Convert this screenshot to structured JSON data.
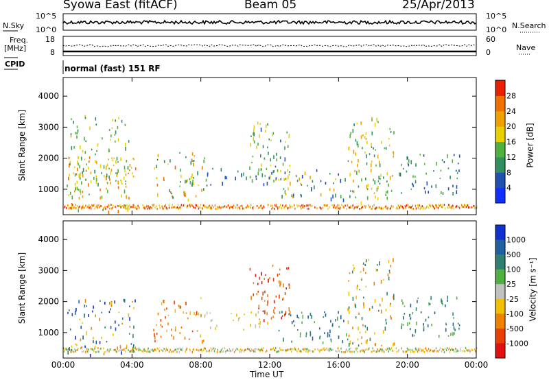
{
  "header": {
    "radar": "Syowa East (fitACF)",
    "beam": "Beam 05",
    "date": "25/Apr/2013"
  },
  "noise_panel": {
    "left_label": "N.Sky",
    "left_top_tick": "10^5",
    "left_bottom_tick": "10^0",
    "right_top_tick": "10^5",
    "right_bottom_tick": "10^0",
    "right_label": "N.Search"
  },
  "freq_panel": {
    "left_label_1": "Freq.",
    "left_label_2": "[MHz]",
    "left_top_tick": "18",
    "left_bottom_tick": "8",
    "right_top_tick": "60",
    "right_bottom_tick": "0",
    "right_label": "Nave"
  },
  "cpid": {
    "label": "CPID",
    "mode": "normal (fast) 151 RF"
  },
  "chart_data": [
    {
      "type": "heatmap",
      "name": "power",
      "ylabel": "Slant Range [km]",
      "xlabel": "",
      "yticks": [
        "1000",
        "2000",
        "3000",
        "4000"
      ],
      "ylim": [
        180,
        4600
      ],
      "colorbar_label": "Power [dB]",
      "colorbar_ticks": [
        "4",
        "8",
        "12",
        "16",
        "20",
        "24",
        "28"
      ],
      "colorbar_colors": [
        "#1030ff",
        "#2050b0",
        "#309060",
        "#50b040",
        "#e8d000",
        "#f0a000",
        "#f07000",
        "#e82000"
      ],
      "scatter_regions": [
        {
          "t0": 0.2,
          "t1": 4.2,
          "r0": 300,
          "r1": 2100,
          "c": [
            3,
            4,
            5,
            6
          ]
        },
        {
          "t0": 0.3,
          "t1": 3.8,
          "r0": 1200,
          "r1": 3400,
          "c": [
            2,
            3,
            4
          ]
        },
        {
          "t0": 5.2,
          "t1": 8.2,
          "r0": 700,
          "r1": 2200,
          "c": [
            2,
            3,
            4,
            5,
            6
          ]
        },
        {
          "t0": 8.0,
          "t1": 12.0,
          "r0": 1100,
          "r1": 1700,
          "c": [
            1,
            2,
            3
          ]
        },
        {
          "t0": 10.8,
          "t1": 13.2,
          "r0": 1300,
          "r1": 3200,
          "c": [
            1,
            2,
            3,
            4
          ]
        },
        {
          "t0": 12.5,
          "t1": 16.5,
          "r0": 700,
          "r1": 1700,
          "c": [
            1,
            2,
            3,
            4,
            5
          ]
        },
        {
          "t0": 16.5,
          "t1": 19.2,
          "r0": 600,
          "r1": 3400,
          "c": [
            2,
            3,
            4,
            5
          ]
        },
        {
          "t0": 19.5,
          "t1": 23.0,
          "r0": 900,
          "r1": 2200,
          "c": [
            1,
            2,
            3
          ]
        }
      ]
    },
    {
      "type": "heatmap",
      "name": "velocity",
      "ylabel": "Slant Range [km]",
      "xlabel": "Time UT",
      "xticks": [
        "00:00",
        "04:00",
        "08:00",
        "12:00",
        "16:00",
        "20:00",
        "00:00"
      ],
      "yticks": [
        "1000",
        "2000",
        "3000",
        "4000"
      ],
      "ylim": [
        180,
        4600
      ],
      "colorbar_label": "Velocity [m s⁻¹]",
      "colorbar_ticks": [
        "1000",
        "500",
        "100",
        "25",
        "-25",
        "-100",
        "-500",
        "-1000"
      ],
      "colorbar_colors": [
        "#1030d0",
        "#2060a0",
        "#308070",
        "#50b040",
        "#c0c0c0",
        "#f0c000",
        "#f08000",
        "#e84000",
        "#e01010"
      ],
      "scatter_regions": [
        {
          "t0": 0.2,
          "t1": 4.2,
          "r0": 300,
          "r1": 2100,
          "c": [
            0,
            1,
            2,
            5,
            6
          ]
        },
        {
          "t0": 5.2,
          "t1": 8.2,
          "r0": 700,
          "r1": 2200,
          "c": [
            6,
            7,
            5
          ]
        },
        {
          "t0": 8.0,
          "t1": 12.0,
          "r0": 1100,
          "r1": 1700,
          "c": [
            4,
            5
          ]
        },
        {
          "t0": 10.8,
          "t1": 13.2,
          "r0": 1400,
          "r1": 3200,
          "c": [
            6,
            7,
            8
          ]
        },
        {
          "t0": 12.5,
          "t1": 16.5,
          "r0": 700,
          "r1": 1700,
          "c": [
            2,
            3,
            1
          ]
        },
        {
          "t0": 16.5,
          "t1": 19.2,
          "r0": 600,
          "r1": 3400,
          "c": [
            5,
            6,
            2
          ]
        },
        {
          "t0": 19.5,
          "t1": 23.0,
          "r0": 900,
          "r1": 2200,
          "c": [
            1,
            2,
            3
          ]
        }
      ]
    }
  ]
}
